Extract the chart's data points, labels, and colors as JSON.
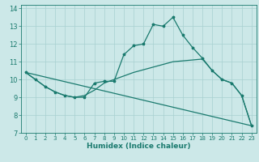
{
  "xlabel": "Humidex (Indice chaleur)",
  "bg_color": "#cce8e8",
  "line_color": "#1a7a6e",
  "grid_color": "#a8d0d0",
  "xlim": [
    -0.5,
    23.5
  ],
  "ylim": [
    7,
    14.2
  ],
  "xticks": [
    0,
    1,
    2,
    3,
    4,
    5,
    6,
    7,
    8,
    9,
    10,
    11,
    12,
    13,
    14,
    15,
    16,
    17,
    18,
    19,
    20,
    21,
    22,
    23
  ],
  "yticks": [
    7,
    8,
    9,
    10,
    11,
    12,
    13,
    14
  ],
  "line1_x": [
    0,
    1,
    2,
    3,
    4,
    5,
    6,
    7,
    8,
    9,
    10,
    11,
    12,
    13,
    14,
    15,
    16,
    17,
    18,
    19,
    20,
    21,
    22,
    23
  ],
  "line1_y": [
    10.4,
    10.0,
    9.6,
    9.3,
    9.1,
    9.0,
    9.0,
    9.8,
    9.9,
    9.9,
    11.4,
    11.9,
    12.0,
    13.1,
    13.0,
    13.5,
    12.5,
    11.8,
    11.2,
    10.5,
    10.0,
    9.8,
    9.1,
    7.4
  ],
  "line2_x": [
    0,
    1,
    2,
    3,
    4,
    5,
    6,
    7,
    8,
    9,
    10,
    11,
    12,
    13,
    14,
    15,
    16,
    17,
    18,
    19,
    20,
    21,
    22,
    23
  ],
  "line2_y": [
    10.4,
    10.0,
    9.6,
    9.3,
    9.1,
    9.0,
    9.1,
    9.4,
    9.8,
    10.0,
    10.2,
    10.4,
    10.55,
    10.7,
    10.85,
    11.0,
    11.05,
    11.1,
    11.15,
    10.5,
    10.0,
    9.8,
    9.1,
    7.4
  ],
  "line3_x": [
    0,
    23
  ],
  "line3_y": [
    10.4,
    7.4
  ]
}
